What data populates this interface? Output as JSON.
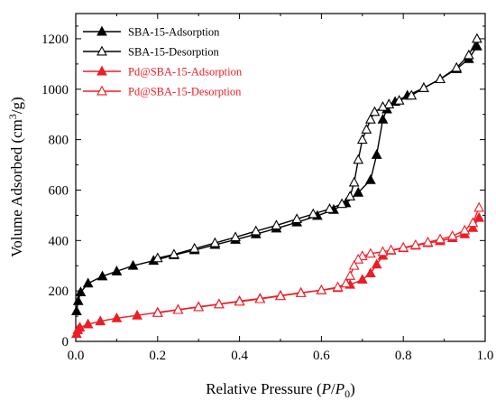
{
  "chart_data": {
    "type": "line",
    "xlabel_parts": [
      "Relative Pressure (",
      "P",
      "/",
      "P",
      "0",
      ")"
    ],
    "ylabel_parts": [
      "Volume Adsorbed (cm",
      "3",
      "/g)"
    ],
    "xlim": [
      0.0,
      1.0
    ],
    "ylim": [
      0,
      1300
    ],
    "xticks": [
      0.0,
      0.2,
      0.4,
      0.6,
      0.8,
      1.0
    ],
    "xtick_labels": [
      "0.0",
      "0.2",
      "0.4",
      "0.6",
      "0.8",
      "1.0"
    ],
    "yticks": [
      0,
      200,
      400,
      600,
      800,
      1000,
      1200
    ],
    "ytick_labels": [
      "0",
      "200",
      "400",
      "600",
      "800",
      "1000",
      "1200"
    ],
    "legend_position": "top-left",
    "grid": false,
    "series": [
      {
        "name": "SBA-15-Adsorption",
        "color": "#000000",
        "marker": "filled-triangle",
        "x": [
          0.002,
          0.006,
          0.012,
          0.03,
          0.065,
          0.1,
          0.14,
          0.19,
          0.24,
          0.29,
          0.34,
          0.39,
          0.44,
          0.49,
          0.54,
          0.59,
          0.63,
          0.66,
          0.69,
          0.72,
          0.735,
          0.75,
          0.76,
          0.78,
          0.81,
          0.85,
          0.89,
          0.93,
          0.96,
          0.98
        ],
        "values": [
          120,
          160,
          195,
          230,
          258,
          278,
          300,
          320,
          342,
          362,
          383,
          403,
          425,
          448,
          472,
          498,
          522,
          548,
          590,
          640,
          740,
          880,
          920,
          950,
          975,
          1005,
          1040,
          1080,
          1120,
          1170
        ]
      },
      {
        "name": "SBA-15-Desorption",
        "color": "#000000",
        "marker": "open-triangle",
        "x": [
          0.98,
          0.96,
          0.93,
          0.89,
          0.85,
          0.82,
          0.79,
          0.765,
          0.75,
          0.73,
          0.72,
          0.71,
          0.7,
          0.69,
          0.68,
          0.67,
          0.65,
          0.62,
          0.58,
          0.54,
          0.49,
          0.44,
          0.39,
          0.34,
          0.29,
          0.24,
          0.2
        ],
        "values": [
          1200,
          1135,
          1085,
          1040,
          1005,
          975,
          955,
          940,
          930,
          910,
          880,
          840,
          800,
          720,
          630,
          575,
          545,
          525,
          505,
          485,
          460,
          437,
          413,
          390,
          368,
          345,
          330
        ]
      },
      {
        "name": "Pd@SBA-15-Adsorption",
        "color": "#ee1c25",
        "marker": "filled-triangle",
        "x": [
          0.002,
          0.005,
          0.01,
          0.03,
          0.06,
          0.1,
          0.15,
          0.2,
          0.25,
          0.3,
          0.35,
          0.4,
          0.45,
          0.5,
          0.55,
          0.6,
          0.64,
          0.67,
          0.7,
          0.72,
          0.735,
          0.75,
          0.77,
          0.8,
          0.83,
          0.86,
          0.89,
          0.92,
          0.95,
          0.97,
          0.985
        ],
        "values": [
          30,
          45,
          55,
          68,
          80,
          92,
          103,
          115,
          126,
          137,
          148,
          160,
          170,
          182,
          193,
          203,
          212,
          225,
          245,
          270,
          305,
          340,
          360,
          370,
          380,
          390,
          398,
          410,
          425,
          450,
          490
        ]
      },
      {
        "name": "Pd@SBA-15-Desorption",
        "color": "#ee1c25",
        "marker": "open-triangle",
        "x": [
          0.985,
          0.97,
          0.95,
          0.92,
          0.89,
          0.86,
          0.83,
          0.8,
          0.77,
          0.75,
          0.72,
          0.7,
          0.69,
          0.68,
          0.67,
          0.66,
          0.64,
          0.6,
          0.55,
          0.5,
          0.45,
          0.4,
          0.35,
          0.3,
          0.25,
          0.2
        ],
        "values": [
          530,
          470,
          440,
          418,
          405,
          393,
          382,
          372,
          362,
          355,
          348,
          338,
          325,
          300,
          260,
          230,
          215,
          203,
          192,
          180,
          168,
          158,
          147,
          136,
          125,
          113
        ]
      }
    ]
  }
}
